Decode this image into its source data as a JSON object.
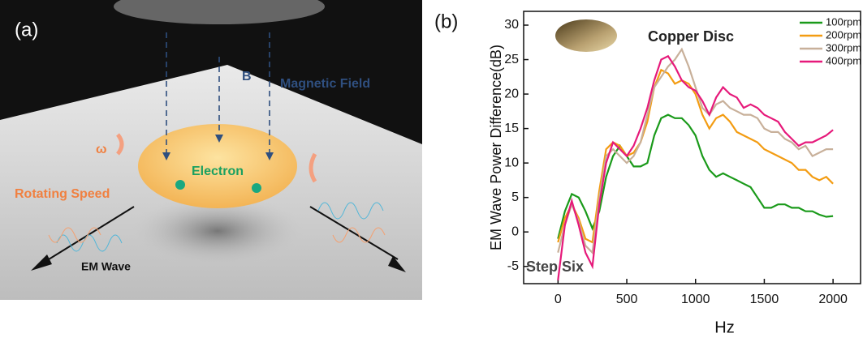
{
  "panel_a": {
    "label": "(a)",
    "field_symbol": "B",
    "field_label": "Magnetic Field",
    "omega": "ω",
    "electron": "Electron",
    "rotating": "Rotating Speed",
    "wave": "EM Wave"
  },
  "chart_data": {
    "type": "line",
    "panel_label": "(b)",
    "y_label": "EM Wave Power Difference(dB)",
    "x_label": "Hz",
    "annotations": [
      "Copper Disc",
      "Step Six"
    ],
    "xlim": [
      -250,
      2200
    ],
    "ylim": [
      -7.5,
      32
    ],
    "xticks": [
      0,
      500,
      1000,
      1500,
      2000
    ],
    "yticks": [
      -5,
      0,
      5,
      10,
      15,
      20,
      25,
      30
    ],
    "legend": "upper right",
    "x": [
      0,
      50,
      100,
      150,
      200,
      250,
      300,
      350,
      400,
      450,
      500,
      550,
      600,
      650,
      700,
      750,
      800,
      850,
      900,
      950,
      1000,
      1050,
      1100,
      1150,
      1200,
      1250,
      1300,
      1350,
      1400,
      1450,
      1500,
      1550,
      1600,
      1650,
      1700,
      1750,
      1800,
      1850,
      1900,
      1950,
      2000
    ],
    "series": [
      {
        "name": "100rpm",
        "color": "#1a9a1a",
        "values": [
          -1,
          3,
          5.5,
          5,
          3,
          0.5,
          3,
          8,
          11,
          12.5,
          11,
          9.5,
          9.5,
          10,
          14,
          16.5,
          17,
          16.5,
          16.5,
          15.5,
          14,
          11,
          9,
          8,
          8.5,
          8,
          7.5,
          7,
          6.5,
          5,
          3.5,
          3.5,
          4,
          4,
          3.5,
          3.5,
          3,
          3,
          2.5,
          2.2,
          2.3
        ]
      },
      {
        "name": "200rpm",
        "color": "#f39c12",
        "values": [
          -1.5,
          2,
          4,
          2,
          -1,
          -1.5,
          6,
          12,
          13,
          12.5,
          11,
          11.5,
          13,
          16,
          21,
          23.5,
          23,
          21.5,
          22,
          21.5,
          20,
          17,
          15,
          16.5,
          17,
          16,
          14.5,
          14,
          13.5,
          13,
          12,
          11.5,
          11,
          10.5,
          10,
          9,
          9,
          8,
          7.5,
          8,
          7
        ]
      },
      {
        "name": "300rpm",
        "color": "#c8b09a",
        "values": [
          -3,
          1,
          4,
          1.5,
          -2,
          -3,
          5,
          11,
          12,
          11,
          10,
          11,
          13,
          17,
          21,
          22.5,
          24,
          25,
          26.5,
          24,
          21,
          18,
          17,
          18.5,
          19,
          18,
          17.5,
          17,
          17,
          16.5,
          15,
          14.5,
          14.5,
          13.5,
          13,
          12,
          12.5,
          11,
          11.5,
          12,
          12
        ]
      },
      {
        "name": "400rpm",
        "color": "#e6197a",
        "values": [
          -7,
          1,
          4.5,
          1,
          -3,
          -5,
          4,
          10,
          13,
          12,
          11,
          12.5,
          15,
          18,
          22,
          25,
          25.5,
          24,
          22,
          21,
          20.5,
          19,
          17,
          19.5,
          21,
          20,
          19.5,
          18,
          18.5,
          18,
          17,
          16.5,
          16,
          14.5,
          13.5,
          12.5,
          13,
          13,
          13.5,
          14,
          14.8
        ]
      }
    ]
  }
}
